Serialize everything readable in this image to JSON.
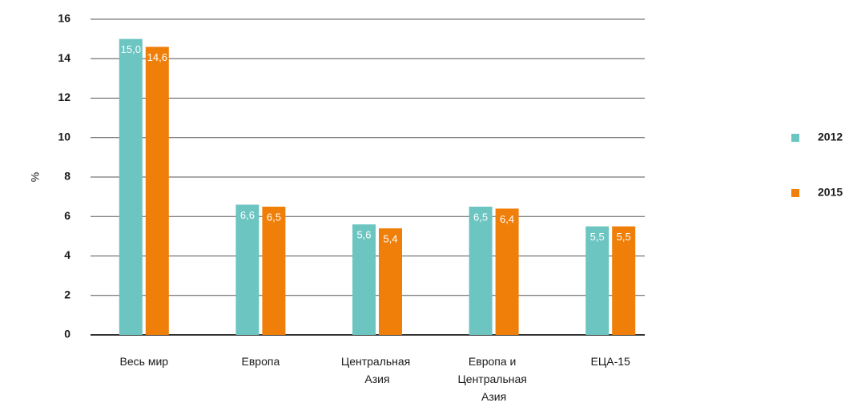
{
  "chart_data": {
    "type": "bar",
    "ylabel": "%",
    "categories": [
      "Весь мир",
      "Европа",
      "Центральная Азия",
      "Европа и Центральная Азия",
      "ЕЦА-15"
    ],
    "series": [
      {
        "name": "2012",
        "color": "#6cc5c1",
        "values": [
          15.0,
          6.6,
          5.6,
          6.5,
          5.5
        ],
        "value_labels": [
          "15,0",
          "6,6",
          "5,6",
          "6,5",
          "5,5"
        ]
      },
      {
        "name": "2015",
        "color": "#f07f09",
        "values": [
          14.6,
          6.5,
          5.4,
          6.4,
          5.5
        ],
        "value_labels": [
          "14,6",
          "6,5",
          "5,4",
          "6,4",
          "5,5"
        ]
      }
    ],
    "ylim": [
      0,
      16
    ],
    "yticks": [
      0,
      2,
      4,
      6,
      8,
      10,
      12,
      14,
      16
    ],
    "grid": true,
    "legend": "right"
  }
}
